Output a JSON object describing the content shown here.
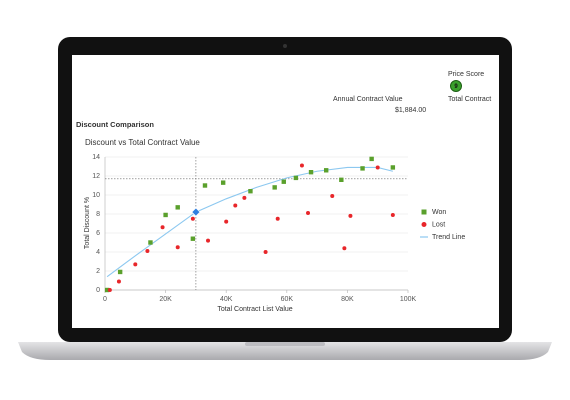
{
  "header": {
    "price_score_label": "Price Score",
    "price_score": "9",
    "total_contract": "Total Contract",
    "annual_contract_value_label": "Annual Contract Value",
    "annual_contract_value": "$1,884.00",
    "section_title": "Discount Comparison"
  },
  "chart_data": {
    "type": "scatter",
    "title": "Discount vs Total Contract Value",
    "x_label": "Total Contract List Value",
    "y_label": "Total Discount %",
    "xlim": [
      0,
      100000
    ],
    "ylim": [
      0,
      14
    ],
    "xticks": [
      0,
      {
        "value": 20000,
        "label": "20K"
      },
      {
        "value": 40000,
        "label": "40K"
      },
      {
        "value": 60000,
        "label": "60K"
      },
      {
        "value": 80000,
        "label": "80K"
      },
      {
        "value": 100000,
        "label": "100K"
      }
    ],
    "yticks": [
      0,
      2,
      4,
      6,
      8,
      10,
      12,
      14
    ],
    "grid": true,
    "legend": "right",
    "series": [
      {
        "name": "Won",
        "color": "#5aa02c",
        "marker": "square",
        "x": [
          700,
          5000,
          15000,
          20000,
          24000,
          29000,
          33000,
          39000,
          48000,
          56000,
          59000,
          63000,
          68000,
          73000,
          78000,
          85000,
          88000,
          95000
        ],
        "values": [
          0,
          1.9,
          5,
          7.9,
          8.7,
          5.4,
          11,
          11.3,
          10.4,
          10.8,
          11.4,
          11.8,
          12.4,
          12.6,
          11.6,
          12.8,
          13.8,
          12.9
        ]
      },
      {
        "name": "Lost",
        "color": "#e8262a",
        "marker": "circle",
        "x": [
          1600,
          4600,
          10000,
          14000,
          19000,
          24000,
          29000,
          34000,
          40000,
          43000,
          46000,
          53000,
          57000,
          65000,
          67000,
          75000,
          79000,
          81000,
          90000,
          95000
        ],
        "values": [
          0,
          0.9,
          2.7,
          4.1,
          6.6,
          4.5,
          7.5,
          5.2,
          7.2,
          8.9,
          9.7,
          4,
          7.5,
          13.1,
          8.1,
          9.9,
          4.4,
          7.8,
          12.9,
          7.9
        ]
      },
      {
        "name": "Trend Line",
        "color": "#8cc8f0",
        "marker": "line",
        "x": [
          700,
          10000,
          20000,
          30000,
          40000,
          50000,
          60000,
          70000,
          80000,
          90000,
          95000
        ],
        "values": [
          1.4,
          3.6,
          5.9,
          8.2,
          9.6,
          10.8,
          11.8,
          12.5,
          12.9,
          12.9,
          12.5
        ]
      }
    ],
    "highlight": {
      "x": 30000,
      "y": 8.2
    },
    "crosshair": {
      "x": 30000,
      "y": 11.7
    }
  }
}
